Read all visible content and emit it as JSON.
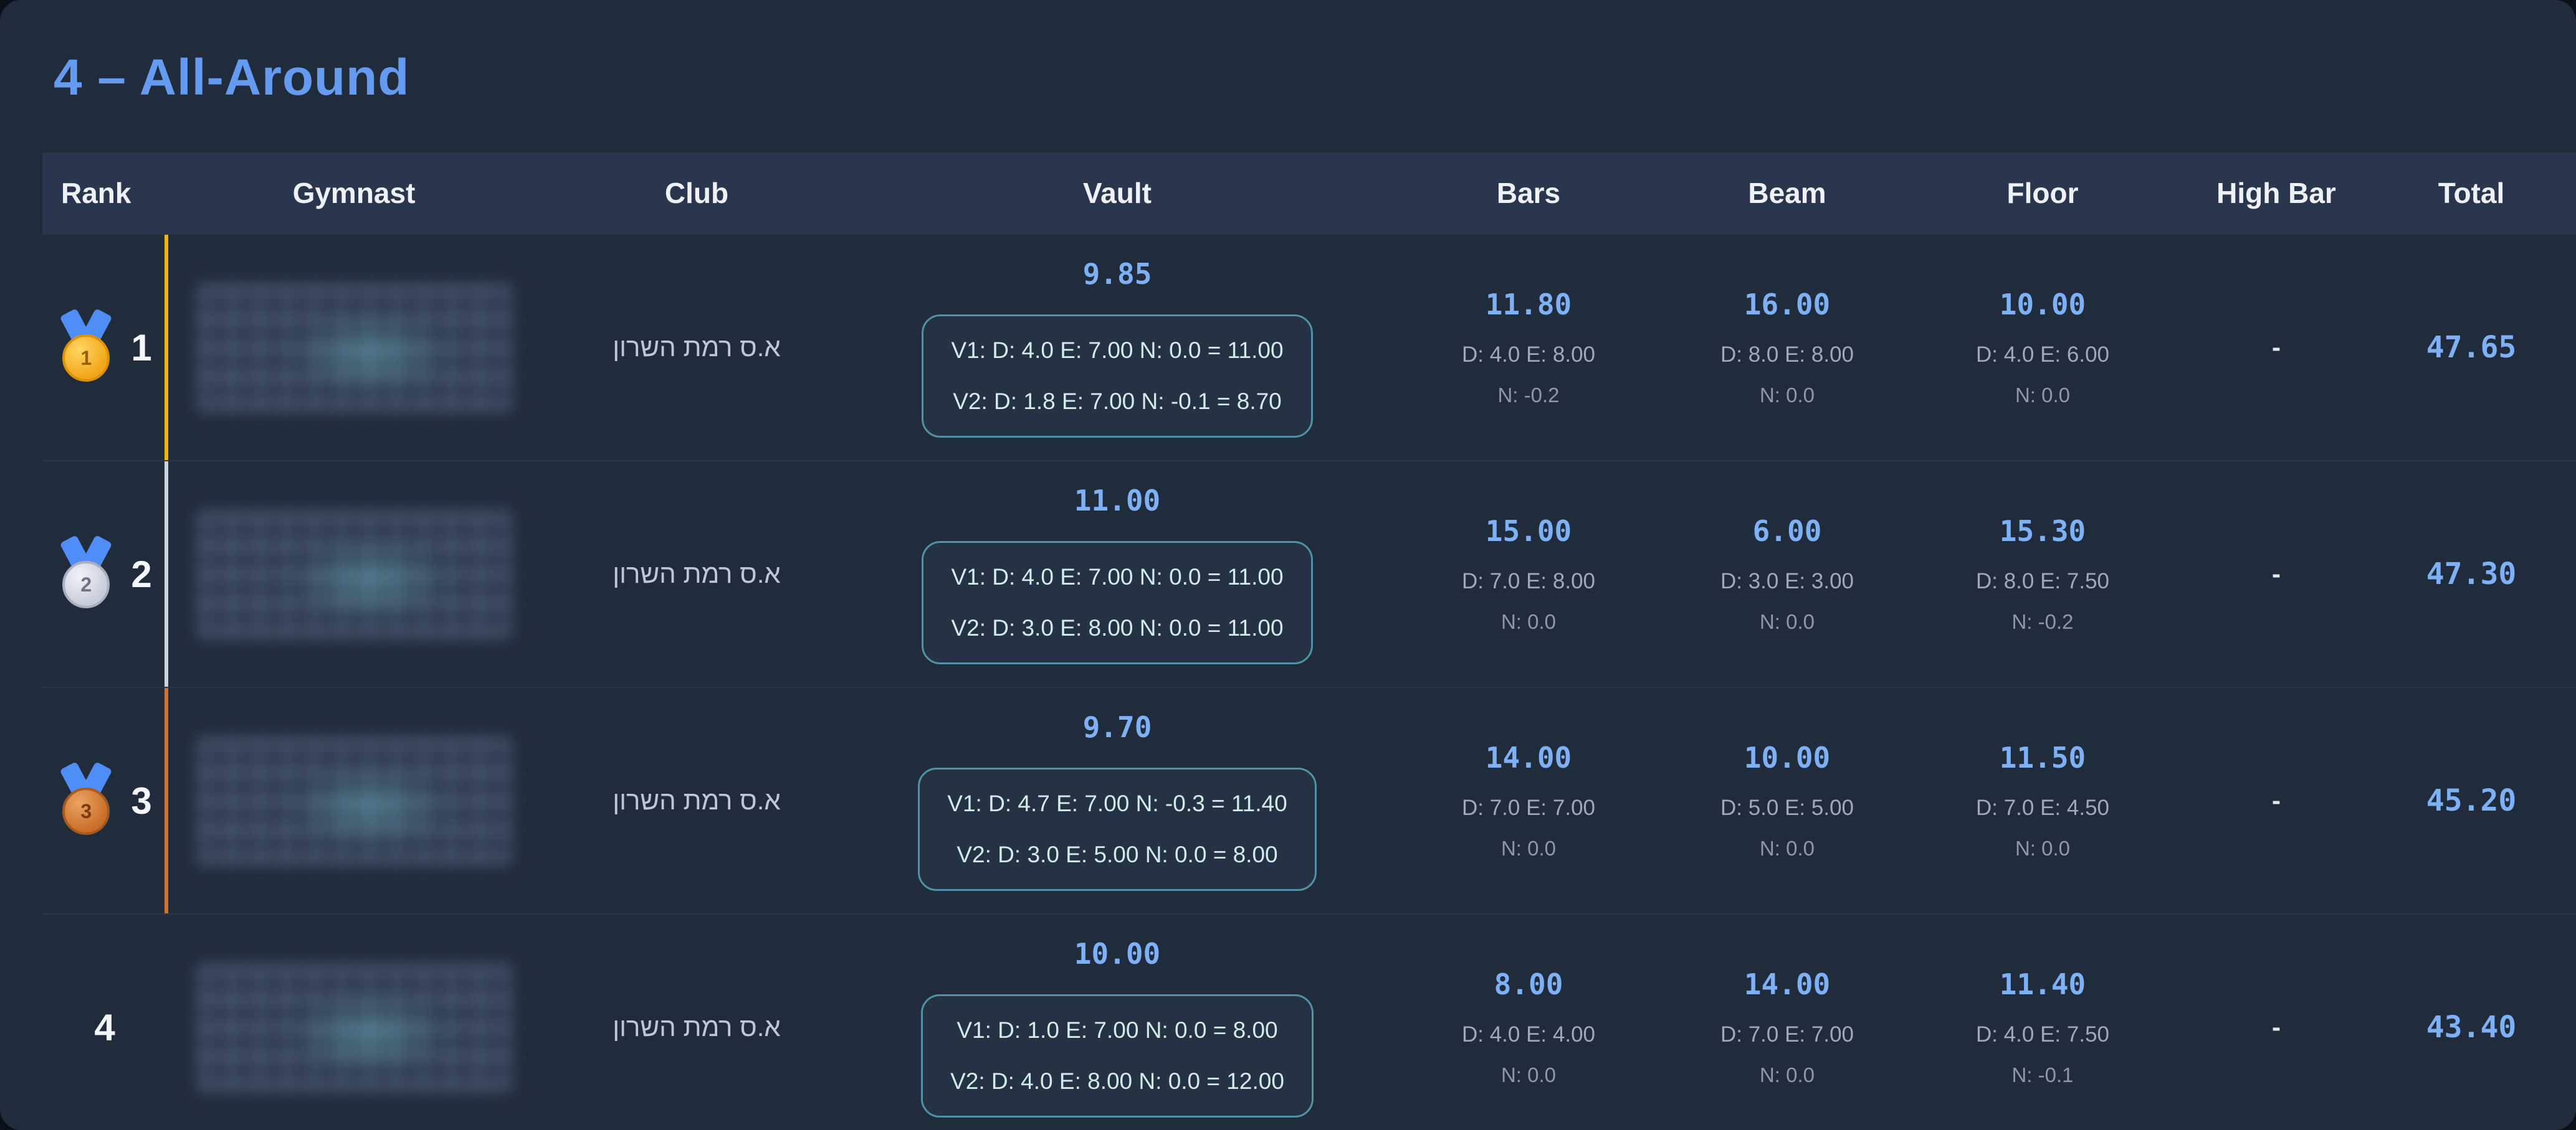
{
  "page": {
    "title": "4 – All-Around"
  },
  "colors": {
    "accent_gold": "#f2b705",
    "accent_silver": "#ccd2dd",
    "accent_bronze": "#cf7233",
    "score_blue": "#7db0f5",
    "title_blue": "#649af0",
    "vault_box_border": "#4e93a6"
  },
  "table": {
    "columns": [
      "Rank",
      "Gymnast",
      "Club",
      "Vault",
      "Bars",
      "Beam",
      "Floor",
      "High Bar",
      "Total"
    ],
    "rows": [
      {
        "rank": "1",
        "medal": "gold",
        "accent_color": "#f2b705",
        "gymnast": {
          "redacted": true
        },
        "club": "א.ס רמת השרון",
        "vault": {
          "score": "9.85",
          "v1": "V1: D: 4.0 E: 7.00 N: 0.0 = 11.00",
          "v2": "V2: D: 1.8 E: 7.00 N: -0.1 = 8.70"
        },
        "bars": {
          "score": "11.80",
          "de": "D: 4.0 E: 8.00",
          "n": "N: -0.2"
        },
        "beam": {
          "score": "16.00",
          "de": "D: 8.0 E: 8.00",
          "n": "N: 0.0"
        },
        "floor": {
          "score": "10.00",
          "de": "D: 4.0 E: 6.00",
          "n": "N: 0.0"
        },
        "high_bar": "-",
        "total": "47.65"
      },
      {
        "rank": "2",
        "medal": "silver",
        "accent_color": "#ccd2dd",
        "gymnast": {
          "redacted": true
        },
        "club": "א.ס רמת השרון",
        "vault": {
          "score": "11.00",
          "v1": "V1: D: 4.0 E: 7.00 N: 0.0 = 11.00",
          "v2": "V2: D: 3.0 E: 8.00 N: 0.0 = 11.00"
        },
        "bars": {
          "score": "15.00",
          "de": "D: 7.0 E: 8.00",
          "n": "N: 0.0"
        },
        "beam": {
          "score": "6.00",
          "de": "D: 3.0 E: 3.00",
          "n": "N: 0.0"
        },
        "floor": {
          "score": "15.30",
          "de": "D: 8.0 E: 7.50",
          "n": "N: -0.2"
        },
        "high_bar": "-",
        "total": "47.30"
      },
      {
        "rank": "3",
        "medal": "bronze",
        "accent_color": "#cf7233",
        "gymnast": {
          "redacted": true
        },
        "club": "א.ס רמת השרון",
        "vault": {
          "score": "9.70",
          "v1": "V1: D: 4.7 E: 7.00 N: -0.3 = 11.40",
          "v2": "V2: D: 3.0 E: 5.00 N: 0.0 = 8.00"
        },
        "bars": {
          "score": "14.00",
          "de": "D: 7.0 E: 7.00",
          "n": "N: 0.0"
        },
        "beam": {
          "score": "10.00",
          "de": "D: 5.0 E: 5.00",
          "n": "N: 0.0"
        },
        "floor": {
          "score": "11.50",
          "de": "D: 7.0 E: 4.50",
          "n": "N: 0.0"
        },
        "high_bar": "-",
        "total": "45.20"
      },
      {
        "rank": "4",
        "medal": null,
        "accent_color": null,
        "gymnast": {
          "redacted": true
        },
        "club": "א.ס רמת השרון",
        "vault": {
          "score": "10.00",
          "v1": "V1: D: 1.0 E: 7.00 N: 0.0 = 8.00",
          "v2": "V2: D: 4.0 E: 8.00 N: 0.0 = 12.00"
        },
        "bars": {
          "score": "8.00",
          "de": "D: 4.0 E: 4.00",
          "n": "N: 0.0"
        },
        "beam": {
          "score": "14.00",
          "de": "D: 7.0 E: 7.00",
          "n": "N: 0.0"
        },
        "floor": {
          "score": "11.40",
          "de": "D: 4.0 E: 7.50",
          "n": "N: -0.1"
        },
        "high_bar": "-",
        "total": "43.40"
      }
    ]
  }
}
